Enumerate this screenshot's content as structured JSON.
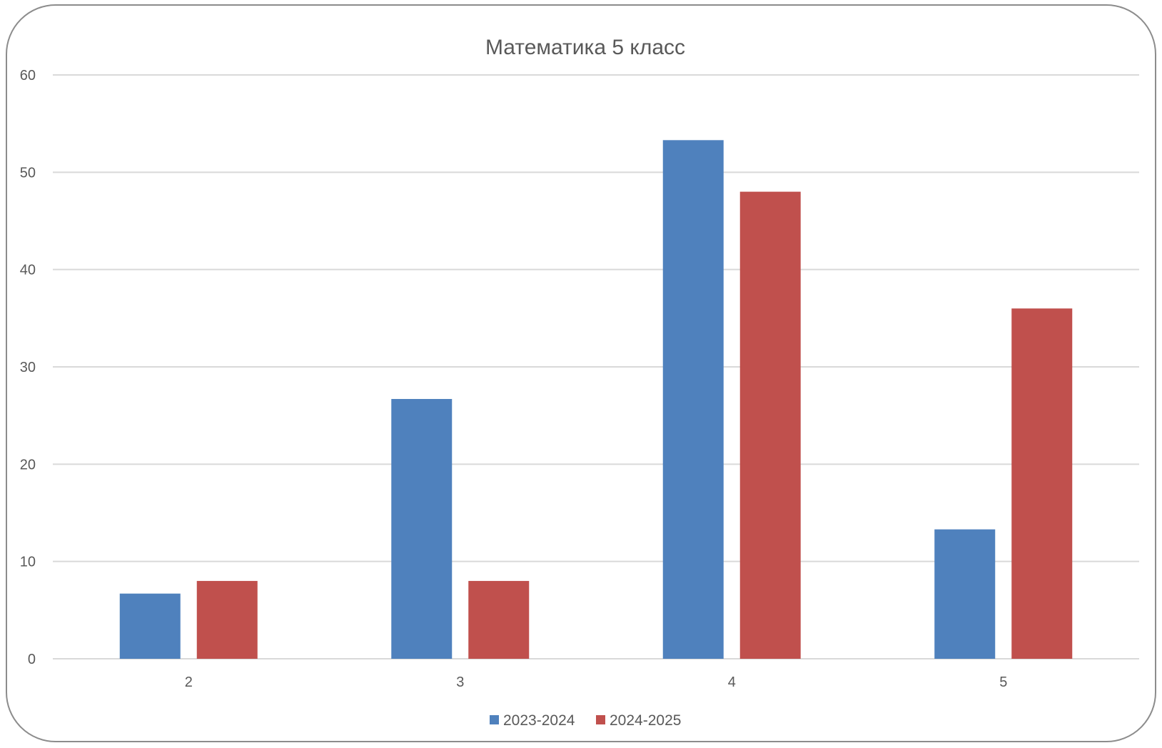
{
  "chart_data": {
    "type": "bar",
    "title": "Математика 5 класс",
    "xlabel": "",
    "ylabel": "",
    "categories": [
      "2",
      "3",
      "4",
      "5"
    ],
    "series": [
      {
        "name": "2023-2024",
        "color": "#4f81bd",
        "values": [
          6.7,
          26.7,
          53.3,
          13.3
        ]
      },
      {
        "name": "2024-2025",
        "color": "#c0504d",
        "values": [
          8,
          8,
          48,
          36
        ]
      }
    ],
    "ylim": [
      0,
      60
    ],
    "yticks": [
      0,
      10,
      20,
      30,
      40,
      50,
      60
    ],
    "grid": true,
    "legend_position": "bottom"
  }
}
